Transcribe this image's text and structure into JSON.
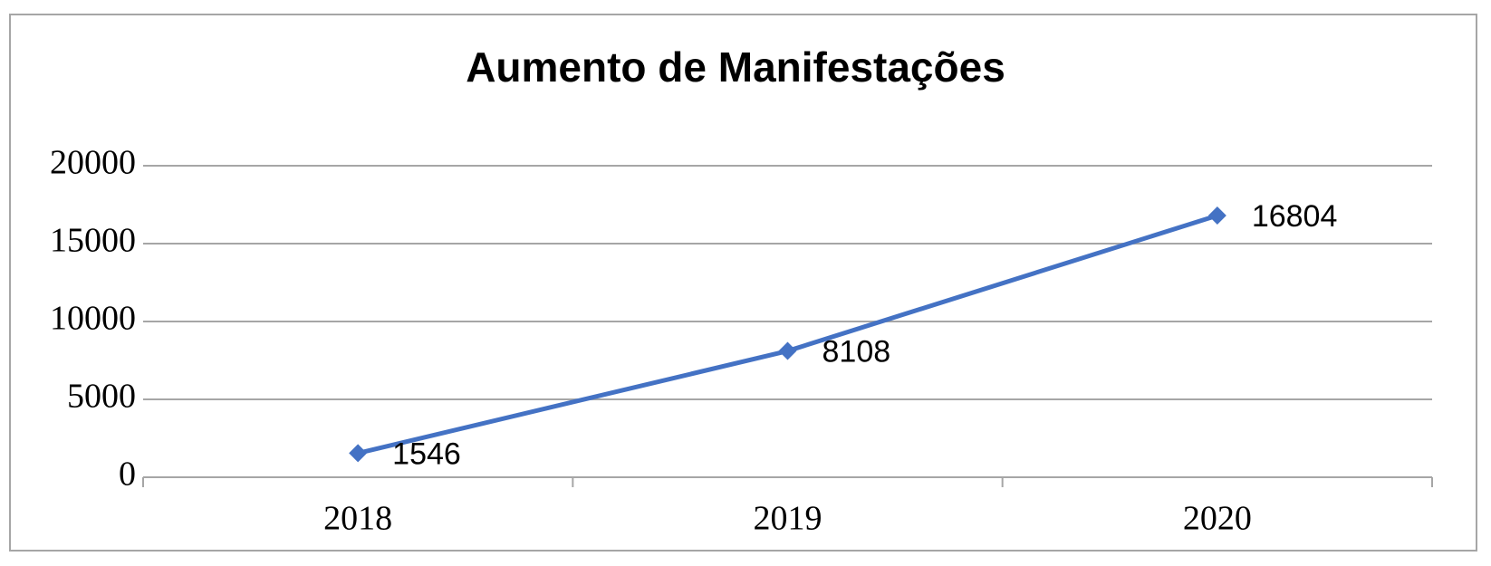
{
  "chart_data": {
    "type": "line",
    "title": "Aumento de Manifestações",
    "categories": [
      "2018",
      "2019",
      "2020"
    ],
    "series": [
      {
        "name": "Manifestações",
        "color": "#4472c4",
        "values": [
          1546,
          8108,
          16804
        ]
      }
    ],
    "ylim": [
      0,
      20000
    ],
    "yticks": [
      0,
      5000,
      10000,
      15000,
      20000
    ],
    "grid": true,
    "data_labels": true
  }
}
